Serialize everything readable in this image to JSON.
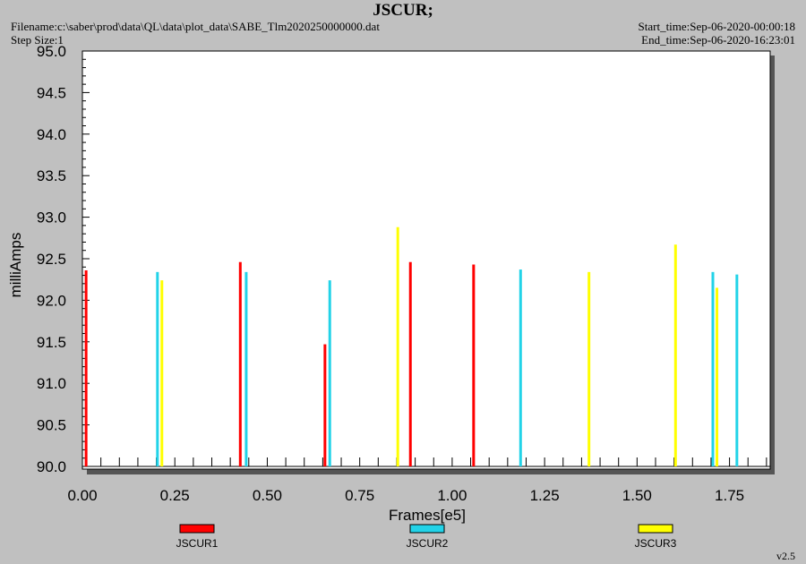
{
  "header": {
    "title": "JSCUR;",
    "filename": "Filename:c:\\saber\\prod\\data\\QL\\data\\plot_data\\SABE_Tlm2020250000000.dat",
    "step_size": "Step Size:1",
    "start_time": "Start_time:Sep-06-2020-00:00:18",
    "end_time": "End_time:Sep-06-2020-16:23:01"
  },
  "footer": {
    "version": "v2.5"
  },
  "chart_data": {
    "type": "bar",
    "title": "JSCUR;",
    "xlabel": "Frames[e5]",
    "ylabel": "milliAmps",
    "xlim": [
      0,
      1.86
    ],
    "ylim": [
      90.0,
      95.0
    ],
    "x_ticks": [
      "0.00",
      "0.25",
      "0.50",
      "0.75",
      "1.00",
      "1.25",
      "1.50",
      "1.75"
    ],
    "y_ticks": [
      "90.0",
      "90.5",
      "91.0",
      "91.5",
      "92.0",
      "92.5",
      "93.0",
      "93.5",
      "94.0",
      "94.5",
      "95.0"
    ],
    "grid": false,
    "legend": "bottom",
    "series": [
      {
        "name": "JSCUR1",
        "color": "#ff0000",
        "points": [
          {
            "x": 0.01,
            "y": 92.36
          },
          {
            "x": 0.427,
            "y": 92.46
          },
          {
            "x": 0.656,
            "y": 91.47
          },
          {
            "x": 0.887,
            "y": 92.46
          },
          {
            "x": 1.058,
            "y": 92.43
          }
        ]
      },
      {
        "name": "JSCUR2",
        "color": "#22d3e8",
        "points": [
          {
            "x": 0.203,
            "y": 92.34
          },
          {
            "x": 0.443,
            "y": 92.34
          },
          {
            "x": 0.669,
            "y": 92.24
          },
          {
            "x": 1.185,
            "y": 92.37
          },
          {
            "x": 1.705,
            "y": 92.34
          },
          {
            "x": 1.77,
            "y": 92.31
          }
        ]
      },
      {
        "name": "JSCUR3",
        "color": "#ffff00",
        "points": [
          {
            "x": 0.215,
            "y": 92.24
          },
          {
            "x": 0.853,
            "y": 92.88
          },
          {
            "x": 1.37,
            "y": 92.34
          },
          {
            "x": 1.604,
            "y": 92.67
          },
          {
            "x": 1.716,
            "y": 92.15
          }
        ]
      }
    ]
  }
}
